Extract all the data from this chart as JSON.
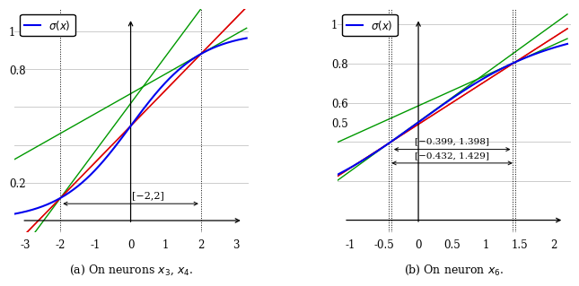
{
  "plot_a": {
    "xlim": [
      -3,
      3
    ],
    "ylim": [
      0,
      1.0
    ],
    "xticks": [
      -3,
      -2,
      -1,
      0,
      1,
      2,
      3
    ],
    "yticks": [
      0.2,
      0.8,
      1.0
    ],
    "interval": [
      -2,
      2
    ],
    "interval_label": "[−2,2]",
    "sigmoid_color": "#0000EE",
    "red_line_color": "#DD0000",
    "green_line_color": "#009900",
    "subtitle": "(a) On neurons $x_3$, $x_4$.",
    "legend_label": "$\\sigma(x)$"
  },
  "plot_b": {
    "xlim": [
      -1,
      2
    ],
    "ylim": [
      0,
      1.0
    ],
    "xticks": [
      -1,
      -0.5,
      0,
      0.5,
      1,
      1.5,
      2
    ],
    "yticks": [
      0.5,
      0.6,
      0.8,
      1.0
    ],
    "interval1": [
      -0.399,
      1.398
    ],
    "interval2": [
      -0.432,
      1.429
    ],
    "interval1_label": "[−0.399, 1.398]",
    "interval2_label": "[−0.432, 1.429]",
    "sigmoid_color": "#0000EE",
    "red_line_color": "#DD0000",
    "green_line_color": "#009900",
    "subtitle": "(b) On neuron $x_6$.",
    "legend_label": "$\\sigma(x)$"
  }
}
